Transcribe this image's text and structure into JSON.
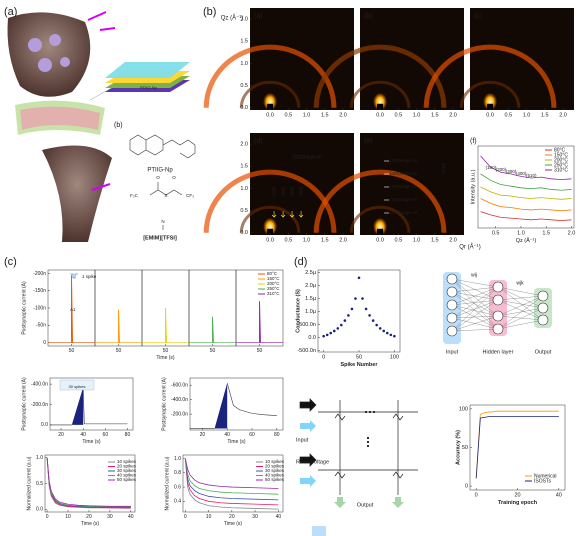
{
  "panel_a": {
    "label": "(a)",
    "film_label": "PTIIG-Np",
    "sub_label": "(b)",
    "polymer_name": "PTIIG-Np",
    "ionic_liquid_name": "[EMIM][TFSI]",
    "chem_labels": [
      "F₃C",
      "CF₃",
      "N",
      "S",
      "O",
      "O"
    ]
  },
  "panel_b": {
    "label": "(b)",
    "y_axis_label": "Qz (Å⁻¹)",
    "x_axis_label": "Qr (Å⁻¹)",
    "image_labels": [
      "(a)",
      "(b)",
      "(c)",
      "(d)",
      "(e)",
      "(f)"
    ],
    "xlim": [
      -0.55,
      2.3
    ],
    "ylim": [
      -0.05,
      2.25
    ],
    "xticks": [
      {
        "value": 0,
        "label": "0.0"
      },
      0.5,
      {
        "value": 1,
        "label": "1.0"
      },
      1.5,
      {
        "value": 2,
        "label": "2.0"
      }
    ],
    "yticks": [
      {
        "value": 0,
        "label": "0.0"
      },
      0.5,
      {
        "value": 1,
        "label": "1.0"
      },
      1.5,
      {
        "value": 2,
        "label": "2.0"
      }
    ],
    "d_peaks": [
      "(010)edge-on",
      "(100)",
      "(200)",
      "(300)",
      "(400)"
    ],
    "e_peaks": [
      "(500)edge-on",
      "(400)edge-on",
      "(300)edge-on",
      "(200)edge-on",
      "(100)edge-on",
      "(010)"
    ],
    "f": {
      "type": "line",
      "y_axis_label": "Intensity (a.u.)",
      "x_axis_label": "Qz (Å⁻¹)",
      "xlim": [
        0.15,
        2.05
      ],
      "ylim": [
        0,
        10
      ],
      "xticks": [
        0.5,
        {
          "value": 1,
          "label": "1.0"
        },
        1.5,
        {
          "value": 2,
          "label": "2.0"
        }
      ],
      "peak_labels": [
        "(100)",
        "(200)",
        "(300)",
        "(400)",
        "(510)"
      ],
      "x": [
        0.2,
        0.4,
        0.6,
        0.8,
        1.0,
        1.2,
        1.4,
        1.6,
        1.8,
        2.0
      ],
      "series": [
        {
          "name": "80°C",
          "color": "#d32f2f",
          "values": [
            2.0,
            1.6,
            1.3,
            1.2,
            1.1,
            1.0,
            1.1,
            1.0,
            0.9,
            1.0
          ]
        },
        {
          "name": "150°C",
          "color": "#f57c00",
          "values": [
            3.6,
            3.0,
            2.6,
            2.5,
            2.3,
            2.2,
            2.3,
            2.2,
            2.1,
            2.2
          ]
        },
        {
          "name": "200°C",
          "color": "#c0b000",
          "values": [
            5.0,
            4.4,
            4.0,
            3.9,
            3.7,
            3.6,
            3.7,
            3.6,
            3.5,
            3.6
          ]
        },
        {
          "name": "250°C",
          "color": "#43a047",
          "values": [
            6.6,
            5.8,
            5.3,
            5.1,
            4.9,
            4.8,
            4.9,
            4.7,
            4.6,
            4.7
          ]
        },
        {
          "name": "310°C",
          "color": "#8e24aa",
          "values": [
            8.8,
            7.4,
            6.8,
            6.6,
            6.3,
            6.1,
            6.2,
            6.0,
            5.9,
            6.0
          ]
        }
      ]
    }
  },
  "panel_c": {
    "label": "(c)",
    "top": {
      "type": "spike",
      "y_axis_label": "Postsynaptic current (A)",
      "x_axis_label": "Time (s)",
      "annotations": [
        "1 spike",
        "A1"
      ],
      "ylim": [
        1e-08,
        -2.1e-07
      ],
      "yticks": [
        {
          "value": -2e-07,
          "label": "-200n"
        },
        {
          "value": -1.5e-07,
          "label": "-150n"
        },
        {
          "value": -1e-07,
          "label": "-100n"
        },
        {
          "value": -5e-08,
          "label": "-50n"
        },
        0
      ],
      "xlim": [
        35,
        65
      ],
      "xticks": [
        50
      ],
      "x": [
        50
      ],
      "series": [
        {
          "name": "80°C",
          "color": "#e65100",
          "values": [
            -1.95e-07
          ]
        },
        {
          "name": "150°C",
          "color": "#ff9800",
          "values": [
            -9.5e-08
          ]
        },
        {
          "name": "200°C",
          "color": "#e6d200",
          "values": [
            -1e-07
          ]
        },
        {
          "name": "250°C",
          "color": "#4caf50",
          "values": [
            -7.5e-08
          ]
        },
        {
          "name": "310°C",
          "color": "#8e24aa",
          "values": [
            -1.2e-07
          ]
        }
      ]
    },
    "mid_left": {
      "type": "train",
      "annotation": "30 spikes",
      "y_axis_label": "Postsynaptic current (A)",
      "x_axis_label": "Time (s)",
      "xlim": [
        10,
        85
      ],
      "xticks": [
        20,
        40,
        60,
        80
      ],
      "ylim": [
        5e-08,
        -4.6e-07
      ],
      "yticks": [
        {
          "value": -4e-07,
          "label": "-400.0n"
        },
        {
          "value": -2e-07,
          "label": "-200.0n"
        },
        {
          "value": 0,
          "label": "0.0"
        }
      ],
      "x": [
        30,
        40,
        41,
        60,
        80
      ],
      "series": [
        {
          "color": "#1a237e",
          "values": [
            -1e-08,
            -3.7e-07,
            -1e-08,
            -1e-08,
            -1e-08
          ]
        }
      ]
    },
    "mid_right": {
      "type": "train",
      "y_axis_label": "Postsynaptic current (A)",
      "x_axis_label": "Time (s)",
      "xlim": [
        10,
        85
      ],
      "xticks": [
        20,
        40,
        60,
        80
      ],
      "ylim": [
        2e-08,
        -7e-07
      ],
      "yticks": [
        {
          "value": -6e-07,
          "label": "-600.0n"
        },
        {
          "value": -4e-07,
          "label": "-400.0n"
        },
        {
          "value": -2e-07,
          "label": "-200.0n"
        }
      ],
      "x": [
        30,
        40,
        45,
        50,
        60,
        70,
        80
      ],
      "series": [
        {
          "color": "#1a237e",
          "values": [
            -1e-08,
            -6.3e-07,
            -3.2e-07,
            -2.6e-07,
            -2.1e-07,
            -1.9e-07,
            -1.8e-07
          ]
        }
      ]
    },
    "bottom_left": {
      "type": "line",
      "y_axis_label": "Normalized current (a.u)",
      "x_axis_label": "Time (s)",
      "xlim": [
        -1,
        42
      ],
      "xticks": [
        0,
        10,
        20,
        30,
        40
      ],
      "ylim": [
        -0.05,
        1.05
      ],
      "yticks": [
        {
          "value": 0,
          "label": "0.0"
        },
        0.5,
        {
          "value": 1,
          "label": "1.0"
        }
      ],
      "x": [
        0,
        1,
        2,
        4,
        6,
        10,
        15,
        20,
        30,
        40
      ],
      "series": [
        {
          "name": "10 spikes",
          "color": "#888888",
          "values": [
            1.0,
            0.45,
            0.25,
            0.12,
            0.08,
            0.05,
            0.04,
            0.03,
            0.03,
            0.02
          ]
        },
        {
          "name": "20 spikes",
          "color": "#e91e63",
          "values": [
            1.0,
            0.48,
            0.28,
            0.14,
            0.09,
            0.06,
            0.05,
            0.04,
            0.03,
            0.03
          ]
        },
        {
          "name": "30 spikes",
          "color": "#3f51b5",
          "values": [
            1.0,
            0.5,
            0.3,
            0.16,
            0.11,
            0.07,
            0.06,
            0.05,
            0.04,
            0.04
          ]
        },
        {
          "name": "40 spikes",
          "color": "#4caf50",
          "values": [
            1.0,
            0.52,
            0.32,
            0.18,
            0.12,
            0.08,
            0.07,
            0.06,
            0.05,
            0.05
          ]
        },
        {
          "name": "50 spikes",
          "color": "#9c27b0",
          "values": [
            1.0,
            0.55,
            0.35,
            0.2,
            0.14,
            0.1,
            0.08,
            0.07,
            0.06,
            0.06
          ]
        }
      ]
    },
    "bottom_right": {
      "type": "line",
      "y_axis_label": "Normalized current (a.u)",
      "x_axis_label": "Time (s)",
      "xlim": [
        -1,
        42
      ],
      "xticks": [
        0,
        10,
        20,
        30,
        40
      ],
      "ylim": [
        0.25,
        1.05
      ],
      "yticks": [
        0.4,
        0.6,
        0.8,
        {
          "value": 1,
          "label": "1.0"
        }
      ],
      "x": [
        0,
        1,
        2,
        4,
        6,
        10,
        15,
        20,
        30,
        40
      ],
      "series": [
        {
          "name": "10 spikes",
          "color": "#888888",
          "values": [
            1.0,
            0.6,
            0.5,
            0.42,
            0.38,
            0.34,
            0.32,
            0.31,
            0.3,
            0.29
          ]
        },
        {
          "name": "20 spikes",
          "color": "#e91e63",
          "values": [
            1.0,
            0.66,
            0.56,
            0.48,
            0.44,
            0.4,
            0.38,
            0.37,
            0.36,
            0.35
          ]
        },
        {
          "name": "30 spikes",
          "color": "#3f51b5",
          "values": [
            1.0,
            0.72,
            0.62,
            0.55,
            0.51,
            0.47,
            0.45,
            0.44,
            0.43,
            0.42
          ]
        },
        {
          "name": "40 spikes",
          "color": "#4caf50",
          "values": [
            1.0,
            0.78,
            0.69,
            0.62,
            0.58,
            0.55,
            0.53,
            0.52,
            0.51,
            0.5
          ]
        },
        {
          "name": "50 spikes",
          "color": "#9c27b0",
          "values": [
            1.0,
            0.85,
            0.77,
            0.7,
            0.66,
            0.63,
            0.61,
            0.6,
            0.59,
            0.58
          ]
        }
      ]
    }
  },
  "panel_d": {
    "label": "(d)",
    "conductance": {
      "type": "scatter",
      "y_axis_label": "Conductance (S)",
      "x_axis_label": "Spike Number",
      "xlim": [
        -8,
        108
      ],
      "xticks": [
        0,
        50,
        100
      ],
      "ylim": [
        -5.6e-07,
        2.6e-06
      ],
      "yticks": [
        {
          "value": 2.5e-06,
          "label": "2.5µ"
        },
        {
          "value": 2e-06,
          "label": "2.0µ"
        },
        {
          "value": 1.5e-06,
          "label": "1.5µ"
        },
        {
          "value": 1e-06,
          "label": "1.0µ"
        },
        {
          "value": 5e-07,
          "label": "500.0n"
        },
        {
          "value": 0,
          "label": "0.0"
        },
        {
          "value": -5e-07,
          "label": "-500.0n"
        }
      ],
      "x": [
        0,
        5,
        10,
        15,
        20,
        25,
        30,
        35,
        40,
        45,
        50,
        55,
        60,
        65,
        70,
        75,
        80,
        85,
        90,
        95,
        100
      ],
      "series": [
        {
          "color": "#1a237e",
          "values": [
            5e-08,
            1e-07,
            1.7e-07,
            2.5e-07,
            3.5e-07,
            4.8e-07,
            6.5e-07,
            8.5e-07,
            1.1e-06,
            1.5e-06,
            2.3e-06,
            1.5e-06,
            1.1e-06,
            8.5e-07,
            6.5e-07,
            4.8e-07,
            3.5e-07,
            2.5e-07,
            1.7e-07,
            1e-07,
            5e-08
          ]
        }
      ]
    },
    "network": {
      "input_label": "Input",
      "hidden_label": "Hidden layer",
      "output_label": "Output",
      "w1": "wij",
      "w2": "wjk"
    },
    "crossbar": {
      "input_label": "Input",
      "voltage_label": "Read Voltage",
      "output_label": "Output"
    },
    "accuracy": {
      "type": "line",
      "y_axis_label": "Accuracy (%)",
      "x_axis_label": "Training epoch",
      "xlim": [
        -3,
        43
      ],
      "xticks": [
        0,
        20,
        40
      ],
      "ylim": [
        -5,
        105
      ],
      "yticks": [
        0,
        50,
        100
      ],
      "x": [
        0,
        2,
        4,
        6,
        8,
        10,
        12,
        14,
        16,
        18,
        20,
        22,
        24,
        26,
        28,
        30,
        32,
        34,
        36,
        38,
        40
      ],
      "series": [
        {
          "name": "Numerical",
          "color": "#ff9800",
          "values": [
            10,
            93,
            95,
            96,
            96,
            97,
            97,
            97,
            97,
            97,
            97,
            97,
            97,
            97,
            97,
            97,
            97,
            97,
            97,
            97,
            97
          ]
        },
        {
          "name": "ISOSTs",
          "color": "#1a237e",
          "values": [
            10,
            88,
            89,
            90,
            90,
            90,
            90,
            90,
            90,
            90,
            90,
            90,
            90,
            90,
            90,
            90,
            90,
            90,
            90,
            90,
            90
          ]
        }
      ]
    }
  }
}
